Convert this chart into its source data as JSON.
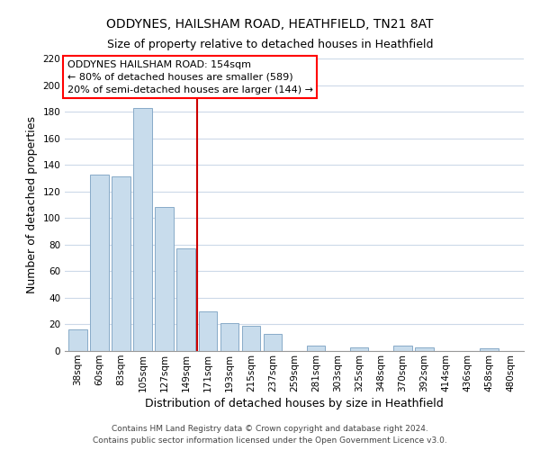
{
  "title": "ODDYNES, HAILSHAM ROAD, HEATHFIELD, TN21 8AT",
  "subtitle": "Size of property relative to detached houses in Heathfield",
  "xlabel": "Distribution of detached houses by size in Heathfield",
  "ylabel": "Number of detached properties",
  "bar_labels": [
    "38sqm",
    "60sqm",
    "83sqm",
    "105sqm",
    "127sqm",
    "149sqm",
    "171sqm",
    "193sqm",
    "215sqm",
    "237sqm",
    "259sqm",
    "281sqm",
    "303sqm",
    "325sqm",
    "348sqm",
    "370sqm",
    "392sqm",
    "414sqm",
    "436sqm",
    "458sqm",
    "480sqm"
  ],
  "bar_values": [
    16,
    133,
    131,
    183,
    108,
    77,
    30,
    21,
    19,
    13,
    0,
    4,
    0,
    3,
    0,
    4,
    3,
    0,
    0,
    2,
    0
  ],
  "bar_color": "#c8dcec",
  "bar_edge_color": "#88aac8",
  "ylim": [
    0,
    220
  ],
  "yticks": [
    0,
    20,
    40,
    60,
    80,
    100,
    120,
    140,
    160,
    180,
    200,
    220
  ],
  "vline_x": 5.5,
  "vline_color": "#cc0000",
  "annotation_box_text": "ODDYNES HAILSHAM ROAD: 154sqm\n← 80% of detached houses are smaller (589)\n20% of semi-detached houses are larger (144) →",
  "footer_line1": "Contains HM Land Registry data © Crown copyright and database right 2024.",
  "footer_line2": "Contains public sector information licensed under the Open Government Licence v3.0.",
  "bg_color": "#ffffff",
  "grid_color": "#ccd9e8",
  "title_fontsize": 10,
  "subtitle_fontsize": 9,
  "axis_label_fontsize": 9,
  "tick_fontsize": 7.5,
  "footer_fontsize": 6.5,
  "annotation_fontsize": 8
}
